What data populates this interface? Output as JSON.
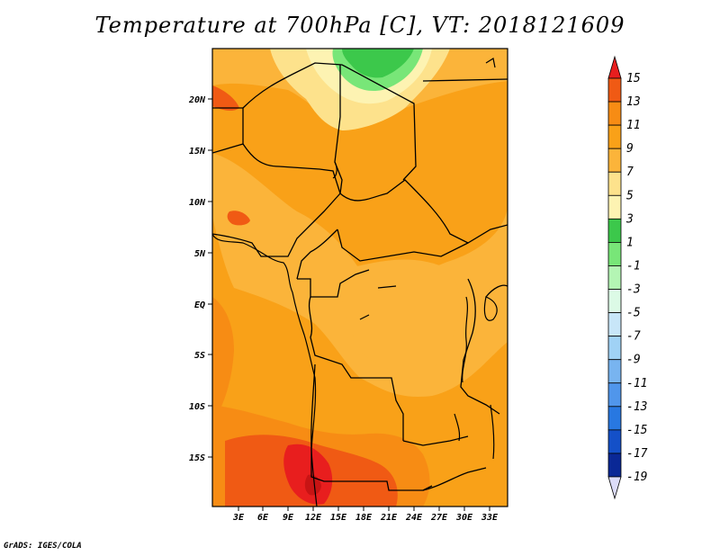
{
  "title": "Temperature at 700hPa [C], VT: 2018121609",
  "credit": "GrADS: IGES/COLA",
  "map": {
    "lat_ticks": [
      "20N",
      "15N",
      "10N",
      "5N",
      "EQ",
      "5S",
      "10S",
      "15S"
    ],
    "lon_ticks": [
      "3E",
      "6E",
      "9E",
      "12E",
      "15E",
      "18E",
      "21E",
      "24E",
      "27E",
      "30E",
      "33E"
    ]
  },
  "colorbar": {
    "labels": [
      "15",
      "13",
      "11",
      "9",
      "7",
      "5",
      "3",
      "1",
      "-1",
      "-3",
      "-5",
      "-7",
      "-9",
      "-11",
      "-13",
      "-15",
      "-17",
      "-19"
    ],
    "colors": [
      "#e81e1e",
      "#f05a14",
      "#f78c14",
      "#f9a118",
      "#fbb43a",
      "#fde28c",
      "#fdf3b2",
      "#3cc84b",
      "#78e678",
      "#b4f5b4",
      "#dcfae6",
      "#c8e6f8",
      "#a0d2f5",
      "#78b4f0",
      "#5096eb",
      "#2878e1",
      "#1450c8",
      "#0a2896",
      "#dcdcf8"
    ]
  }
}
